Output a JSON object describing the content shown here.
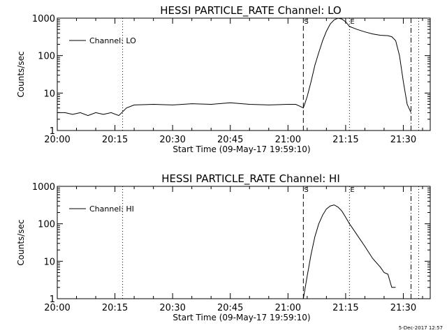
{
  "footer_date": "5-Dec-2017 12:57",
  "chart_data": [
    {
      "type": "line",
      "title": "HESSI PARTICLE_RATE Channel: LO",
      "xlabel": "Start Time (09-May-17 19:59:10)",
      "ylabel": "Counts/sec",
      "y_scale": "log",
      "xlim": [
        "20:00",
        "21:37"
      ],
      "ylim": [
        1,
        1000
      ],
      "x_ticks": [
        "20:00",
        "20:15",
        "20:30",
        "20:45",
        "21:00",
        "21:15",
        "21:30"
      ],
      "y_ticks": [
        "1",
        "10",
        "100",
        "1000"
      ],
      "legend": {
        "position": "top-left",
        "entries": [
          "Channel: LO"
        ]
      },
      "markers": [
        {
          "x": "20:17",
          "style": "dotted",
          "label": ""
        },
        {
          "x": "21:04",
          "style": "dashed",
          "label": "S"
        },
        {
          "x": "21:16",
          "style": "dotted",
          "label": "E"
        },
        {
          "x": "21:32",
          "style": "dashdot",
          "label": ""
        },
        {
          "x": "21:34",
          "style": "dotted",
          "label": ""
        }
      ],
      "series": [
        {
          "x": [
            "20:00",
            "20:02",
            "20:04",
            "20:06",
            "20:08",
            "20:10",
            "20:12",
            "20:14",
            "20:16",
            "20:18",
            "20:20",
            "20:25",
            "20:30",
            "20:35",
            "20:40",
            "20:45",
            "20:50",
            "20:55",
            "21:00",
            "21:02",
            "21:03",
            "21:04",
            "21:05",
            "21:06",
            "21:07",
            "21:08",
            "21:09",
            "21:10",
            "21:11",
            "21:12",
            "21:13",
            "21:14",
            "21:15",
            "21:16",
            "21:18",
            "21:20",
            "21:22",
            "21:24",
            "21:26",
            "21:27",
            "21:28",
            "21:29",
            "21:30",
            "21:31",
            "21:32"
          ],
          "values": [
            3,
            3,
            2.7,
            3,
            2.5,
            3,
            2.7,
            3,
            2.5,
            4,
            4.8,
            5,
            4.8,
            5.2,
            5,
            5.5,
            5,
            4.8,
            5,
            5,
            4.5,
            4,
            8,
            20,
            55,
            120,
            250,
            450,
            700,
            900,
            1000,
            950,
            800,
            600,
            500,
            430,
            380,
            350,
            340,
            320,
            250,
            100,
            20,
            5,
            3
          ]
        }
      ]
    },
    {
      "type": "line",
      "title": "HESSI PARTICLE_RATE Channel: HI",
      "xlabel": "Start Time (09-May-17 19:59:10)",
      "ylabel": "Counts/sec",
      "y_scale": "log",
      "xlim": [
        "20:00",
        "21:37"
      ],
      "ylim": [
        1,
        1000
      ],
      "x_ticks": [
        "20:00",
        "20:15",
        "20:30",
        "20:45",
        "21:00",
        "21:15",
        "21:30"
      ],
      "y_ticks": [
        "1",
        "10",
        "100",
        "1000"
      ],
      "legend": {
        "position": "top-left",
        "entries": [
          "Channel: HI"
        ]
      },
      "markers": [
        {
          "x": "20:17",
          "style": "dotted",
          "label": ""
        },
        {
          "x": "21:04",
          "style": "dashed",
          "label": "S"
        },
        {
          "x": "21:16",
          "style": "dotted",
          "label": "E"
        },
        {
          "x": "21:32",
          "style": "dashdot",
          "label": ""
        },
        {
          "x": "21:34",
          "style": "dotted",
          "label": ""
        }
      ],
      "series": [
        {
          "x": [
            "21:04",
            "21:05",
            "21:06",
            "21:07",
            "21:08",
            "21:09",
            "21:10",
            "21:11",
            "21:12",
            "21:13",
            "21:14",
            "21:15",
            "21:16",
            "21:18",
            "21:20",
            "21:22",
            "21:24",
            "21:25",
            "21:26",
            "21:27",
            "21:28"
          ],
          "values": [
            1,
            4,
            15,
            45,
            100,
            170,
            250,
            300,
            320,
            280,
            220,
            150,
            100,
            50,
            25,
            12,
            7,
            5,
            4.5,
            2,
            2
          ]
        }
      ]
    }
  ]
}
